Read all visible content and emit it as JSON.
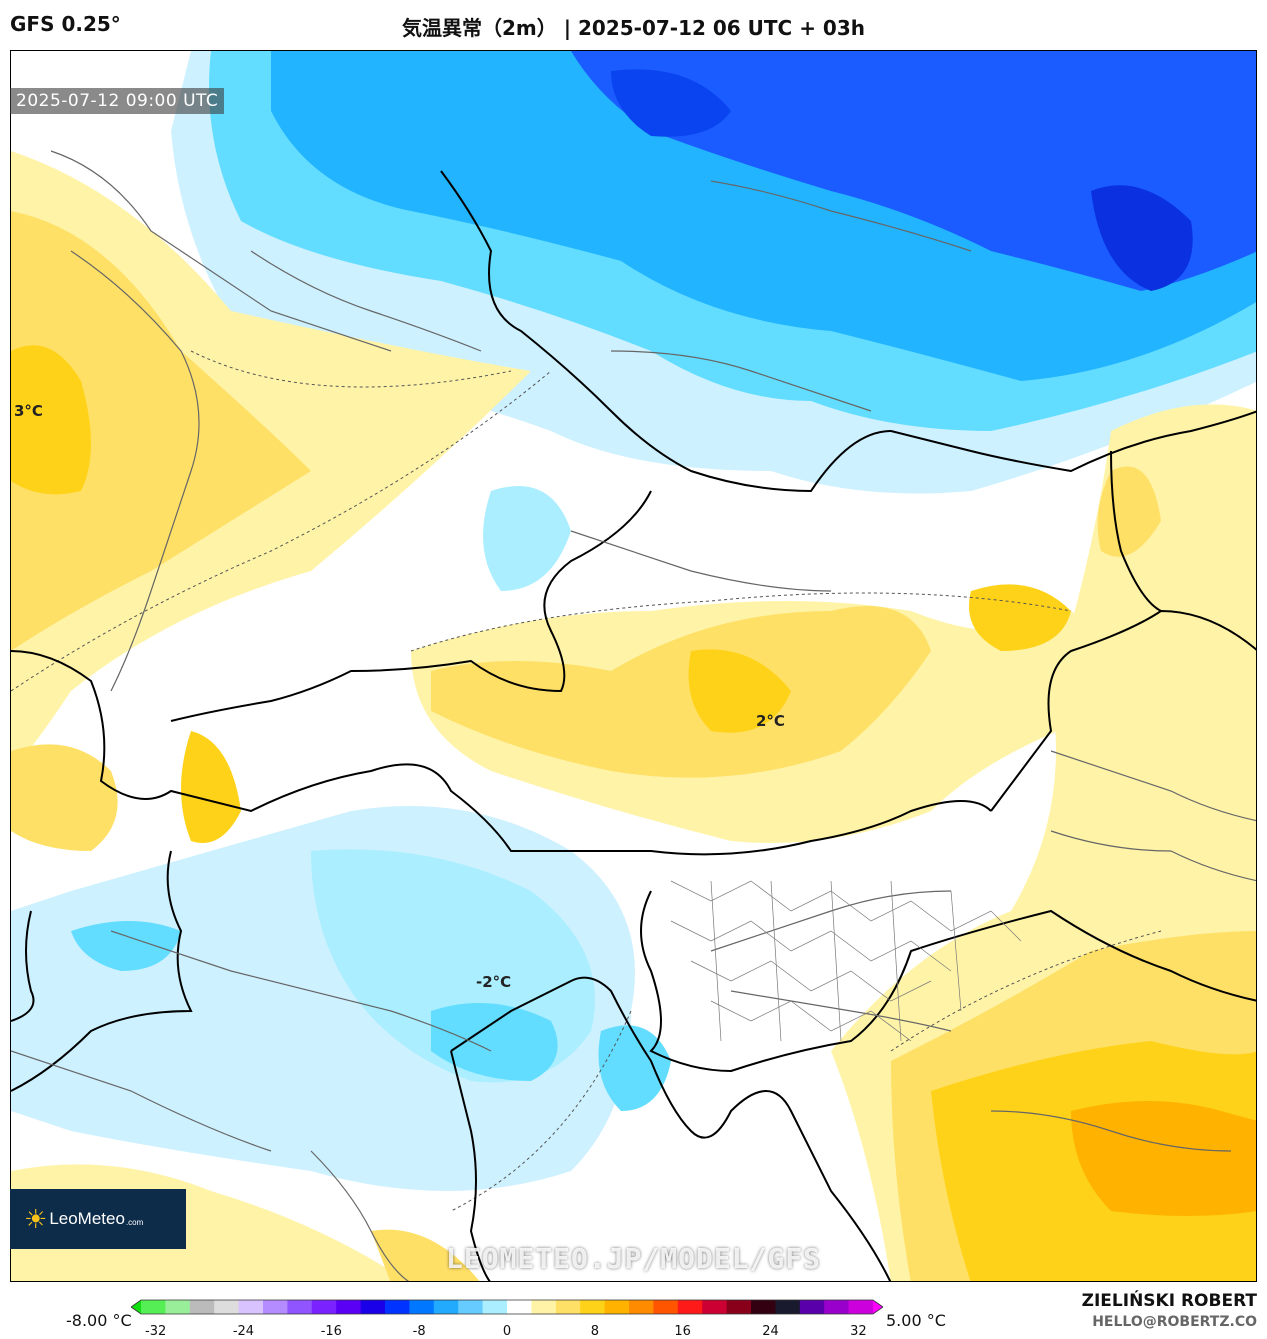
{
  "header": {
    "model": "GFS 0.25°",
    "title": "気温異常（2m） | 2025-07-12 06 UTC + 03h"
  },
  "map": {
    "valid_time": "2025-07-12 09:00 UTC",
    "contour_labels": [
      "3°C",
      "2°C",
      "-2°C"
    ],
    "watermark": "LEOMETEO.JP/MODEL/GFS",
    "logo": {
      "brand": "LeoMeteo",
      "suffix": ".com",
      "icon": "sun-icon"
    },
    "colors": {
      "cold_strong": "#1a5cff",
      "cold_mid": "#22b4ff",
      "cold_light": "#62ddff",
      "cold_pale": "#cdf1ff",
      "neutral": "#ffffff",
      "warm_pale": "#fff3a8",
      "warm_mid": "#ffe066",
      "warm_strong": "#ffd21a",
      "warm_deep": "#ffb300"
    }
  },
  "legend": {
    "min_label": "-8.00 °C",
    "max_label": "5.00 °C",
    "ticks": [
      "-32",
      "-24",
      "-16",
      "-8",
      "0",
      "8",
      "16",
      "24",
      "32"
    ],
    "colors": [
      "#11dd11",
      "#55ee55",
      "#99ee99",
      "#bbbbbb",
      "#dddddd",
      "#d9c3ff",
      "#b58cff",
      "#9155ff",
      "#7a22ff",
      "#5a00f5",
      "#1a00e8",
      "#0033ff",
      "#0077ff",
      "#22aaff",
      "#66ccff",
      "#aaeeff",
      "#ffffff",
      "#fff3a8",
      "#ffe066",
      "#ffd21a",
      "#ffb300",
      "#ff8c00",
      "#ff5500",
      "#ff1a1a",
      "#cc0033",
      "#88001a",
      "#330011",
      "#1a1a2e",
      "#5a00aa",
      "#9900cc",
      "#cc00dd",
      "#ff00ff"
    ]
  },
  "credit": {
    "author": "ZIELIŃSKI ROBERT",
    "email": "HELLO@ROBERTZ.CO"
  }
}
